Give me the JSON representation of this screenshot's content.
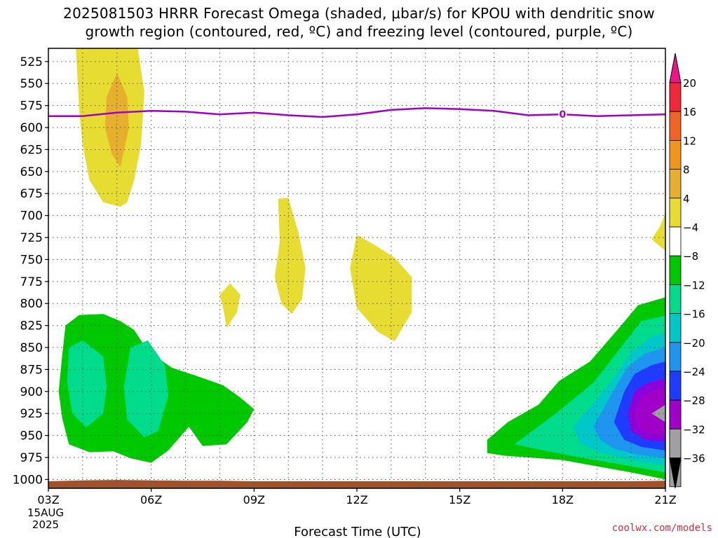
{
  "chart_data": {
    "type": "heatmap",
    "title_line1": "2025081503 HRRR Forecast Omega (shaded, μbar/s) for KPOU with dendritic snow",
    "title_line2": "growth region (contoured, red, ºC) and freezing level (contoured, purple, ºC)",
    "xlabel": "Forecast Time (UTC)",
    "x_ticks": [
      {
        "hour": 0,
        "label": "03Z"
      },
      {
        "hour": 3,
        "label": "06Z"
      },
      {
        "hour": 6,
        "label": "09Z"
      },
      {
        "hour": 9,
        "label": "12Z"
      },
      {
        "hour": 12,
        "label": "15Z"
      },
      {
        "hour": 15,
        "label": "18Z"
      },
      {
        "hour": 18,
        "label": "21Z"
      }
    ],
    "x_date_lines": [
      "15AUG",
      "2025"
    ],
    "xlim_hours": [
      0,
      18
    ],
    "y_ticks": [
      525,
      550,
      575,
      600,
      625,
      650,
      675,
      700,
      725,
      750,
      775,
      800,
      825,
      850,
      875,
      900,
      925,
      950,
      975,
      1000
    ],
    "ylim_hpa": [
      510,
      1010
    ],
    "grid": true,
    "colorbar": {
      "position": "right",
      "labels": [
        "20",
        "16",
        "12",
        "8",
        "4",
        "−4",
        "−8",
        "−12",
        "−16",
        "−20",
        "−24",
        "−28",
        "−32",
        "−36"
      ],
      "bins": [
        {
          "min": 16,
          "max": 20,
          "color": "#f0283c"
        },
        {
          "min": 12,
          "max": 16,
          "color": "#f06428"
        },
        {
          "min": 8,
          "max": 12,
          "color": "#f0961e"
        },
        {
          "min": 4,
          "max": 8,
          "color": "#e6af2d"
        },
        {
          "min": 0,
          "max": 4,
          "color": "#e6dc32"
        },
        {
          "min": -4,
          "max": 4,
          "color": "#ffffff"
        },
        {
          "min": -8,
          "max": -4,
          "color": "#00c800"
        },
        {
          "min": -12,
          "max": -8,
          "color": "#00dc8c"
        },
        {
          "min": -16,
          "max": -12,
          "color": "#00c8c8"
        },
        {
          "min": -20,
          "max": -16,
          "color": "#1e96f0"
        },
        {
          "min": -24,
          "max": -20,
          "color": "#1e3cff"
        },
        {
          "min": -28,
          "max": -24,
          "color": "#8c00dc"
        },
        {
          "min": -32,
          "max": -28,
          "color": "#a000c8"
        },
        {
          "min": -36,
          "max": -32,
          "color": "#a0a0a0"
        }
      ],
      "top_arrow_color": "#f0148c",
      "bottom_arrow_color": "#000000"
    },
    "freezing_level": {
      "label": "0",
      "label_hour": 15,
      "color": "#a000c8",
      "points": [
        [
          0,
          587
        ],
        [
          1,
          587
        ],
        [
          2,
          583
        ],
        [
          3,
          581
        ],
        [
          4,
          582
        ],
        [
          5,
          585
        ],
        [
          6,
          583
        ],
        [
          7,
          586
        ],
        [
          8,
          588
        ],
        [
          9,
          585
        ],
        [
          10,
          580
        ],
        [
          11,
          578
        ],
        [
          12,
          579
        ],
        [
          13,
          581
        ],
        [
          14,
          586
        ],
        [
          15,
          585
        ],
        [
          16,
          587
        ],
        [
          17,
          586
        ],
        [
          18,
          585
        ]
      ]
    },
    "shaded_regions": [
      {
        "name": "upward-4-8-col04",
        "color": "#e6dc32",
        "points": [
          [
            0.8,
            508
          ],
          [
            2.6,
            508
          ],
          [
            2.8,
            560
          ],
          [
            2.7,
            620
          ],
          [
            2.5,
            660
          ],
          [
            2.3,
            685
          ],
          [
            2.1,
            690
          ],
          [
            1.6,
            685
          ],
          [
            1.2,
            660
          ],
          [
            1.0,
            620
          ],
          [
            0.9,
            580
          ]
        ]
      },
      {
        "name": "upward-8-12-col05",
        "color": "#e6af2d",
        "points": [
          [
            2.0,
            538
          ],
          [
            2.3,
            565
          ],
          [
            2.35,
            600
          ],
          [
            2.1,
            645
          ],
          [
            1.85,
            630
          ],
          [
            1.65,
            600
          ],
          [
            1.7,
            565
          ]
        ]
      },
      {
        "name": "upward-4-8-h8",
        "color": "#e6dc32",
        "points": [
          [
            5.3,
            777
          ],
          [
            5.6,
            790
          ],
          [
            5.5,
            810
          ],
          [
            5.2,
            828
          ],
          [
            5.1,
            805
          ],
          [
            5.0,
            790
          ]
        ]
      },
      {
        "name": "upward-4-8-h10",
        "color": "#e6dc32",
        "points": [
          [
            6.7,
            681
          ],
          [
            7.0,
            680
          ],
          [
            7.3,
            720
          ],
          [
            7.5,
            760
          ],
          [
            7.4,
            795
          ],
          [
            7.1,
            812
          ],
          [
            6.8,
            800
          ],
          [
            6.6,
            770
          ],
          [
            6.75,
            730
          ]
        ]
      },
      {
        "name": "upward-4-8-h12",
        "color": "#e6dc32",
        "points": [
          [
            9.0,
            722
          ],
          [
            9.5,
            733
          ],
          [
            10.1,
            748
          ],
          [
            10.6,
            770
          ],
          [
            10.6,
            810
          ],
          [
            10.1,
            843
          ],
          [
            9.6,
            832
          ],
          [
            9.0,
            805
          ],
          [
            8.8,
            760
          ]
        ]
      },
      {
        "name": "upward-4-8-h21",
        "color": "#e6dc32",
        "points": [
          [
            18.0,
            697
          ],
          [
            18.0,
            740
          ],
          [
            17.6,
            727
          ],
          [
            17.85,
            712
          ]
        ]
      },
      {
        "name": "downward-4-8-left",
        "color": "#00c800",
        "points": [
          [
            0.4,
            860
          ],
          [
            0.5,
            825
          ],
          [
            0.9,
            813
          ],
          [
            1.6,
            812
          ],
          [
            2.1,
            820
          ],
          [
            2.5,
            830
          ],
          [
            2.8,
            848
          ],
          [
            3.2,
            862
          ],
          [
            3.6,
            873
          ],
          [
            4.3,
            882
          ],
          [
            5.1,
            893
          ],
          [
            5.6,
            907
          ],
          [
            6.0,
            920
          ],
          [
            5.8,
            935
          ],
          [
            5.2,
            960
          ],
          [
            4.5,
            962
          ],
          [
            4.1,
            940
          ],
          [
            3.5,
            967
          ],
          [
            3.0,
            981
          ],
          [
            2.4,
            976
          ],
          [
            1.9,
            968
          ],
          [
            1.2,
            969
          ],
          [
            0.6,
            960
          ],
          [
            0.4,
            930
          ],
          [
            0.3,
            900
          ]
        ]
      },
      {
        "name": "downward-8-12-left-a",
        "color": "#00dc8c",
        "points": [
          [
            0.6,
            850
          ],
          [
            1.0,
            842
          ],
          [
            1.6,
            860
          ],
          [
            1.7,
            895
          ],
          [
            1.6,
            925
          ],
          [
            1.1,
            941
          ],
          [
            0.7,
            925
          ],
          [
            0.55,
            890
          ]
        ]
      },
      {
        "name": "downward-8-12-left-b",
        "color": "#00dc8c",
        "points": [
          [
            2.4,
            850
          ],
          [
            2.9,
            842
          ],
          [
            3.4,
            870
          ],
          [
            3.5,
            905
          ],
          [
            3.2,
            945
          ],
          [
            2.8,
            952
          ],
          [
            2.3,
            932
          ],
          [
            2.2,
            895
          ]
        ]
      },
      {
        "name": "downward-4-8-right",
        "color": "#00c800",
        "points": [
          [
            12.8,
            955
          ],
          [
            13.4,
            935
          ],
          [
            14.3,
            915
          ],
          [
            14.9,
            888
          ],
          [
            15.8,
            866
          ],
          [
            16.6,
            830
          ],
          [
            17.2,
            802
          ],
          [
            18.0,
            793
          ],
          [
            18.0,
            1000
          ],
          [
            17.0,
            992
          ],
          [
            16.0,
            985
          ],
          [
            15.0,
            978
          ],
          [
            14.0,
            975
          ],
          [
            13.3,
            973
          ],
          [
            12.8,
            970
          ]
        ]
      },
      {
        "name": "downward-8-12-right",
        "color": "#00dc8c",
        "points": [
          [
            13.6,
            960
          ],
          [
            14.8,
            925
          ],
          [
            15.9,
            890
          ],
          [
            16.7,
            850
          ],
          [
            17.3,
            820
          ],
          [
            18.0,
            814
          ],
          [
            18.0,
            992
          ],
          [
            17.0,
            985
          ],
          [
            15.5,
            975
          ],
          [
            14.2,
            965
          ]
        ]
      },
      {
        "name": "downward-12-16-right",
        "color": "#00c8c8",
        "points": [
          [
            15.3,
            940
          ],
          [
            15.8,
            918
          ],
          [
            16.4,
            890
          ],
          [
            17.0,
            855
          ],
          [
            17.6,
            838
          ],
          [
            18.0,
            833
          ],
          [
            18.0,
            984
          ],
          [
            17.0,
            978
          ],
          [
            16.0,
            968
          ],
          [
            15.5,
            958
          ]
        ]
      },
      {
        "name": "downward-16-20-right",
        "color": "#1e96f0",
        "points": [
          [
            15.9,
            940
          ],
          [
            16.4,
            905
          ],
          [
            16.9,
            872
          ],
          [
            17.4,
            857
          ],
          [
            18.0,
            850
          ],
          [
            18.0,
            976
          ],
          [
            17.2,
            972
          ],
          [
            16.5,
            965
          ],
          [
            16.1,
            955
          ]
        ]
      },
      {
        "name": "downward-20-24-right",
        "color": "#1e3cff",
        "points": [
          [
            16.5,
            935
          ],
          [
            16.8,
            900
          ],
          [
            17.1,
            880
          ],
          [
            17.6,
            870
          ],
          [
            18.0,
            866
          ],
          [
            18.0,
            967
          ],
          [
            17.3,
            963
          ],
          [
            16.8,
            955
          ]
        ]
      },
      {
        "name": "downward-24-28-right",
        "color": "#8c00dc",
        "points": [
          [
            16.9,
            925
          ],
          [
            17.1,
            900
          ],
          [
            17.5,
            890
          ],
          [
            18.0,
            885
          ],
          [
            18.0,
            957
          ],
          [
            17.4,
            955
          ],
          [
            17.0,
            945
          ]
        ]
      },
      {
        "name": "downward-28-32-right",
        "color": "#a000c8",
        "points": [
          [
            17.1,
            925
          ],
          [
            17.3,
            905
          ],
          [
            17.7,
            898
          ],
          [
            18.0,
            897
          ],
          [
            18.0,
            950
          ],
          [
            17.5,
            948
          ],
          [
            17.2,
            940
          ]
        ]
      },
      {
        "name": "downward-32-36-right",
        "color": "#a0a0a0",
        "points": [
          [
            17.6,
            925
          ],
          [
            18.0,
            915
          ],
          [
            18.0,
            935
          ]
        ]
      }
    ],
    "terrain": {
      "color": "#a0522d",
      "top_points": [
        [
          0,
          1002
        ],
        [
          1,
          1001
        ],
        [
          2,
          1000.5
        ],
        [
          3,
          1001
        ],
        [
          4,
          1001.5
        ],
        [
          5,
          1001.5
        ],
        [
          6,
          1002
        ],
        [
          7,
          1002
        ],
        [
          8,
          1002
        ],
        [
          9,
          1002
        ],
        [
          10,
          1002
        ],
        [
          11,
          1002
        ],
        [
          12,
          1002
        ],
        [
          13,
          1002
        ],
        [
          14,
          1002
        ],
        [
          15,
          1002
        ],
        [
          16,
          1002
        ],
        [
          17,
          1002
        ],
        [
          18,
          1001.5
        ]
      ]
    }
  },
  "credit": "coolwx.com/models"
}
